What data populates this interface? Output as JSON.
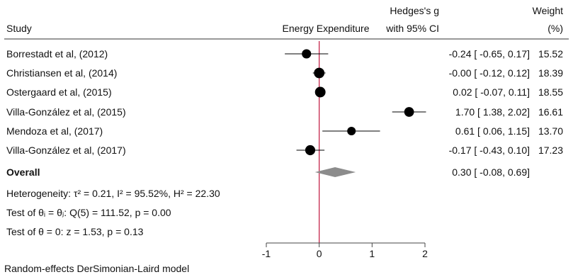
{
  "header": {
    "study": "Study",
    "effect": "Energy Expenditure",
    "ci_line1": "Hedges's g",
    "ci_line2": "with 95% CI",
    "weight_line1": "Weight",
    "weight_line2": "(%)"
  },
  "chart_data": {
    "type": "forest",
    "x_range": [
      -1,
      2
    ],
    "ticks": [
      -1,
      0,
      1,
      2
    ],
    "tick_labels": [
      "-1",
      "0",
      "1",
      "2"
    ],
    "studies": [
      {
        "label": "Borrestadt et al, (2012)",
        "g": -0.24,
        "lo": -0.65,
        "hi": 0.17,
        "weight": 15.52,
        "ci_text": "-0.24 [  -0.65,  0.17]",
        "weight_text": "15.52"
      },
      {
        "label": "Christiansen et al, (2014)",
        "g": -0.0,
        "lo": -0.12,
        "hi": 0.12,
        "weight": 18.39,
        "ci_text": "-0.00 [  -0.12,  0.12]",
        "weight_text": "18.39"
      },
      {
        "label": "Ostergaard et al, (2015)",
        "g": 0.02,
        "lo": -0.07,
        "hi": 0.11,
        "weight": 18.55,
        "ci_text": "0.02 [  -0.07,  0.11]",
        "weight_text": "18.55"
      },
      {
        "label": "Villa-González et al, (2015)",
        "g": 1.7,
        "lo": 1.38,
        "hi": 2.02,
        "weight": 16.61,
        "ci_text": "1.70 [   1.38,  2.02]",
        "weight_text": "16.61"
      },
      {
        "label": "Mendoza et al, (2017)",
        "g": 0.61,
        "lo": 0.06,
        "hi": 1.15,
        "weight": 13.7,
        "ci_text": "0.61 [   0.06,  1.15]",
        "weight_text": "13.70"
      },
      {
        "label": "Villa-González et al, (2017)",
        "g": -0.17,
        "lo": -0.43,
        "hi": 0.1,
        "weight": 17.23,
        "ci_text": "-0.17 [  -0.43,  0.10]",
        "weight_text": "17.23"
      }
    ],
    "overall": {
      "label": "Overall",
      "g": 0.3,
      "lo": -0.08,
      "hi": 0.69,
      "ci_text": "0.30 [  -0.08,  0.69]"
    },
    "reference_line": 0,
    "colors": {
      "marker": "#000000",
      "diamond": "#8c8c8c",
      "reference": "#c0143c",
      "axis": "#444444"
    }
  },
  "stats": {
    "heterogeneity": "Heterogeneity: τ² = 0.21, I² = 95.52%, H² = 22.30",
    "test_q": "Test of θᵢ = θⱼ: Q(5) = 111.52, p = 0.00",
    "test_z": "Test of θ = 0: z = 1.53, p = 0.13"
  },
  "footer": "Random-effects DerSimonian-Laird model"
}
